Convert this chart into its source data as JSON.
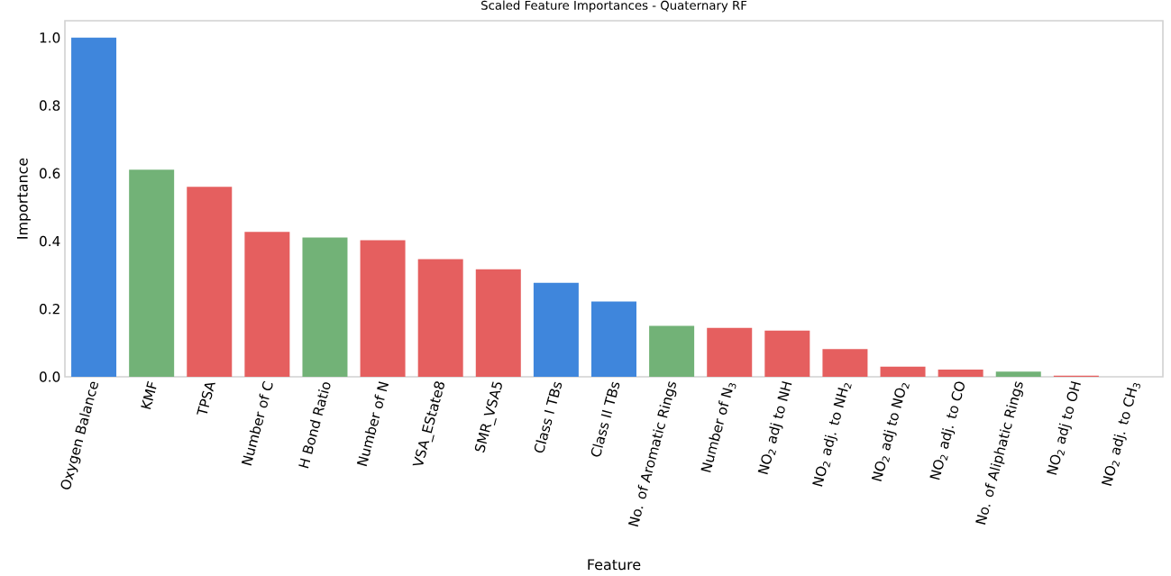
{
  "chart_data": {
    "type": "bar",
    "title": "Scaled Feature Importances - Quaternary RF",
    "xlabel": "Feature",
    "ylabel": "Importance",
    "categories": [
      "Oxygen Balance",
      "KMF",
      "TPSA",
      "Number of C",
      "H Bond Ratio",
      "Number of N",
      "VSA_EState8",
      "SMR_VSA5",
      "Class I TBs",
      "Class II TBs",
      "No. of Aromatic Rings",
      "Number of N$_{3}$",
      "NO$_{2}$ adj to NH",
      "NO$_{2}$ adj. to NH$_{2}$",
      "NO$_{2}$ adj to NO$_{2}$",
      "NO$_{2}$ adj. to CO",
      "No. of Aliphatic Rings",
      "NO$_{2}$ adj to OH",
      "NO$_{2}$ adj. to CH$_{3}$"
    ],
    "values": [
      1.0,
      0.611,
      0.56,
      0.427,
      0.411,
      0.403,
      0.347,
      0.317,
      0.277,
      0.222,
      0.15,
      0.144,
      0.136,
      0.082,
      0.03,
      0.021,
      0.015,
      0.003,
      0.0
    ],
    "colors": [
      "#3f86dc",
      "#72b277",
      "#e55f5f",
      "#e55f5f",
      "#72b277",
      "#e55f5f",
      "#e55f5f",
      "#e55f5f",
      "#3f86dc",
      "#3f86dc",
      "#72b277",
      "#e55f5f",
      "#e55f5f",
      "#e55f5f",
      "#e55f5f",
      "#e55f5f",
      "#72b277",
      "#e55f5f",
      "#e55f5f"
    ],
    "ylim": [
      0,
      1.05
    ],
    "yticks": [
      {
        "value": 0,
        "label": "0.0"
      },
      0.2,
      0.4,
      0.6,
      0.8,
      {
        "value": 1,
        "label": "1.0"
      }
    ],
    "grid": false
  }
}
